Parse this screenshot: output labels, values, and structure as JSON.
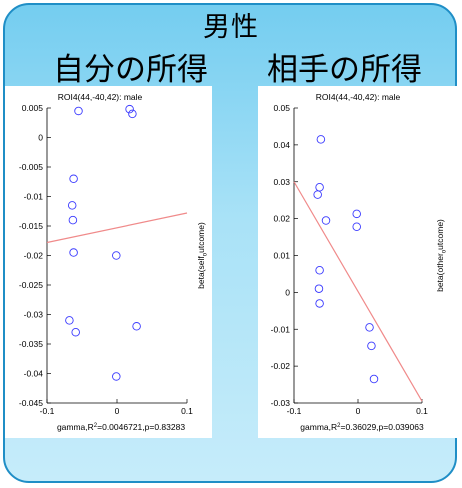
{
  "header": {
    "title": "男性",
    "left_subtitle": "自分の所得",
    "right_subtitle": "相手の所得"
  },
  "colors": {
    "panel_border": "#1f8ec6",
    "panel_fill": "#a9e2f7",
    "marker": "#3b3bff",
    "fit_line": "#f08a8a"
  },
  "chart_data": [
    {
      "type": "scatter",
      "title": "ROI4(44,-40,42): male",
      "ylabel_parts": [
        "beta(self",
        "o",
        "utcome)"
      ],
      "xlabel_parts": [
        "gamma,R",
        "2",
        "=0.0046721,p=0.83283"
      ],
      "xlim": [
        -0.1,
        0.1
      ],
      "ylim": [
        -0.045,
        0.005
      ],
      "xticks": [
        -0.1,
        0,
        0.1
      ],
      "xtick_labels": [
        "-0.1",
        "0",
        "0.1"
      ],
      "yticks": [
        0.005,
        0,
        -0.005,
        -0.01,
        -0.015,
        -0.02,
        -0.025,
        -0.03,
        -0.035,
        -0.04,
        -0.045
      ],
      "ytick_labels": [
        "0.005",
        "0",
        "-0.005",
        "-0.01",
        "-0.015",
        "-0.02",
        "-0.025",
        "-0.03",
        "-0.035",
        "-0.04",
        "-0.045"
      ],
      "points": [
        {
          "x": -0.055,
          "y": 0.0045
        },
        {
          "x": 0.018,
          "y": 0.0048
        },
        {
          "x": 0.022,
          "y": 0.004
        },
        {
          "x": -0.062,
          "y": -0.007
        },
        {
          "x": -0.064,
          "y": -0.0115
        },
        {
          "x": -0.063,
          "y": -0.014
        },
        {
          "x": -0.062,
          "y": -0.0195
        },
        {
          "x": -0.001,
          "y": -0.02
        },
        {
          "x": -0.068,
          "y": -0.031
        },
        {
          "x": -0.059,
          "y": -0.033
        },
        {
          "x": 0.028,
          "y": -0.032
        },
        {
          "x": -0.001,
          "y": -0.0405
        }
      ],
      "fit_line": {
        "x": [
          -0.1,
          0.1
        ],
        "y": [
          -0.0178,
          -0.0128
        ]
      }
    },
    {
      "type": "scatter",
      "title": "ROI4(44,-40,42): male",
      "ylabel_parts": [
        "beta(other",
        "o",
        "utcome)"
      ],
      "xlabel_parts": [
        "gamma,R",
        "2",
        "=0.36029,p=0.039063"
      ],
      "xlim": [
        -0.1,
        0.1
      ],
      "ylim": [
        -0.03,
        0.05
      ],
      "xticks": [
        -0.1,
        0,
        0.1
      ],
      "xtick_labels": [
        "-0.1",
        "0",
        "0.1"
      ],
      "yticks": [
        0.05,
        0.04,
        0.03,
        0.02,
        0.01,
        0,
        -0.01,
        -0.02,
        -0.03
      ],
      "ytick_labels": [
        "0.05",
        "0.04",
        "0.03",
        "0.02",
        "0.01",
        "0",
        "-0.01",
        "-0.02",
        "-0.03"
      ],
      "points": [
        {
          "x": -0.058,
          "y": 0.0415
        },
        {
          "x": -0.06,
          "y": 0.0285
        },
        {
          "x": -0.063,
          "y": 0.0265
        },
        {
          "x": -0.05,
          "y": 0.0195
        },
        {
          "x": -0.002,
          "y": 0.0213
        },
        {
          "x": -0.002,
          "y": 0.0178
        },
        {
          "x": -0.06,
          "y": 0.006
        },
        {
          "x": -0.061,
          "y": 0.001
        },
        {
          "x": -0.06,
          "y": -0.003
        },
        {
          "x": 0.018,
          "y": -0.0095
        },
        {
          "x": 0.021,
          "y": -0.0145
        },
        {
          "x": 0.025,
          "y": -0.0235
        }
      ],
      "fit_line": {
        "x": [
          -0.1,
          0.1
        ],
        "y": [
          0.03,
          -0.0295
        ]
      }
    }
  ]
}
